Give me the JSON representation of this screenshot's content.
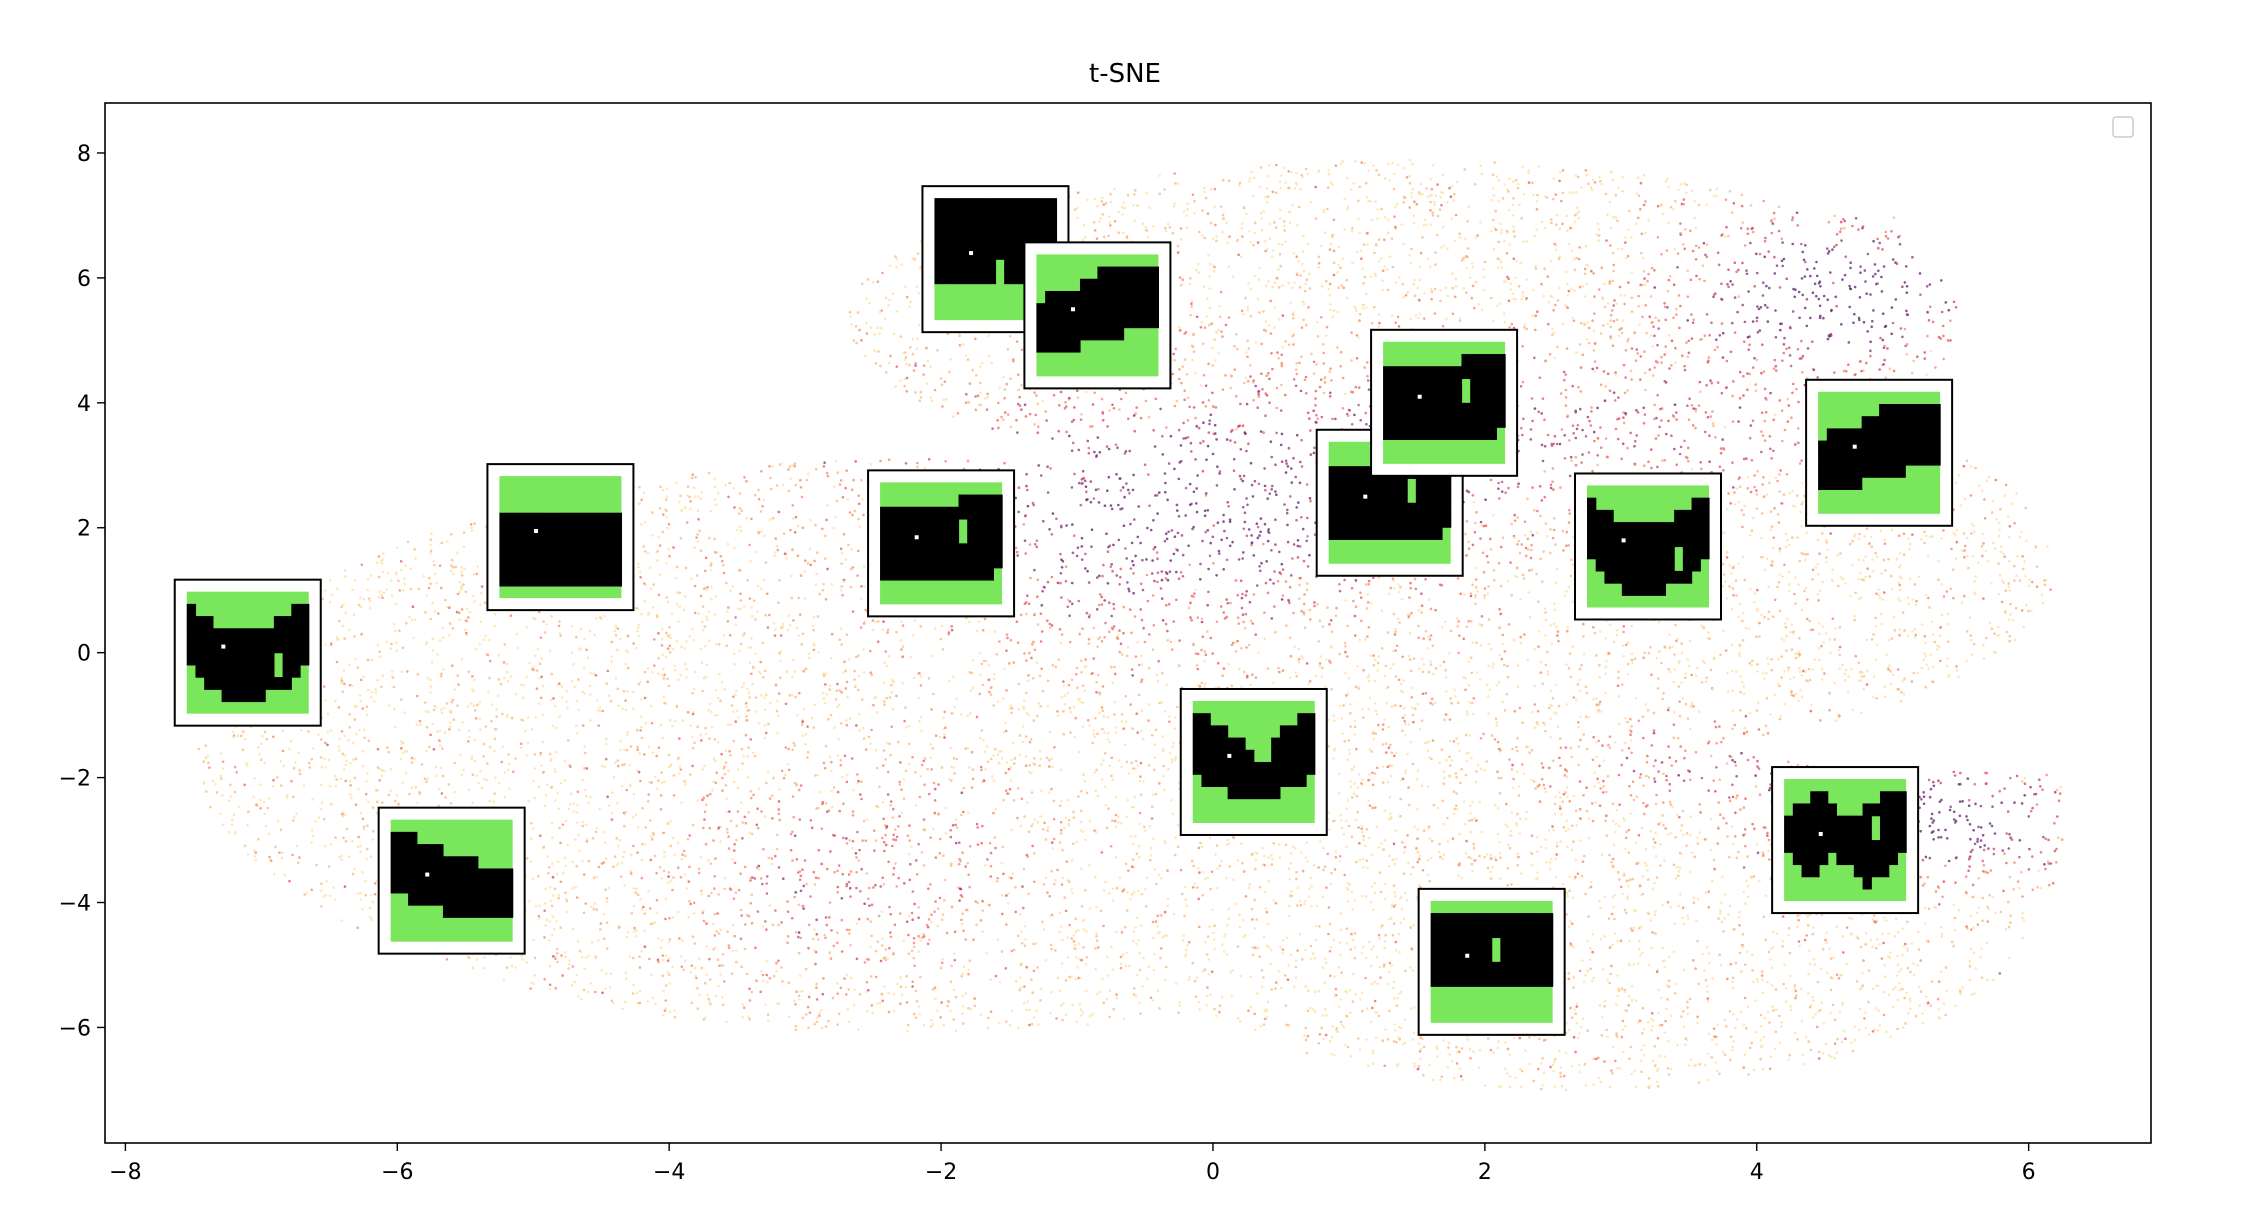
{
  "chart_data": {
    "type": "scatter",
    "title": "t-SNE",
    "xlabel": "",
    "ylabel": "",
    "xlim": [
      -8.15,
      6.9
    ],
    "ylim": [
      -7.85,
      8.8
    ],
    "xticks": [
      -8,
      -6,
      -4,
      -2,
      0,
      2,
      4,
      6
    ],
    "yticks": [
      -6,
      -4,
      -2,
      0,
      2,
      4,
      6,
      8
    ],
    "x_tick_labels": [
      "−8",
      "−6",
      "−4",
      "−2",
      "0",
      "2",
      "4",
      "6"
    ],
    "y_tick_labels": [
      "−6",
      "−4",
      "−2",
      "0",
      "2",
      "4",
      "6",
      "8"
    ],
    "grid": false,
    "legend": {
      "placement": "top-right",
      "entries": []
    },
    "colormap": [
      "#fcdfa0",
      "#fbb47a",
      "#f48662",
      "#e65a5d",
      "#c4416f",
      "#8c2c7a",
      "#5c1f6e"
    ],
    "thumbnail_colors": {
      "background": "#7ae65c",
      "mask": "#000000",
      "frame": "#000000",
      "marker": "#ffffff"
    },
    "scatter_summary": "approximately 40,000 small points forming a broad cloud spanning x ≈ -7.5…6.2 and y ≈ -7…8",
    "thumbnails": [
      {
        "x": -7.1,
        "y": 0.0,
        "shape": "curve-down"
      },
      {
        "x": -5.6,
        "y": -3.65,
        "shape": "slope-down"
      },
      {
        "x": -4.8,
        "y": 1.85,
        "shape": "band"
      },
      {
        "x": -2.0,
        "y": 1.75,
        "shape": "band-block"
      },
      {
        "x": -1.6,
        "y": 6.3,
        "shape": "band-low"
      },
      {
        "x": -0.85,
        "y": 5.4,
        "shape": "slope-up"
      },
      {
        "x": 0.3,
        "y": -1.75,
        "shape": "v-dip"
      },
      {
        "x": 1.3,
        "y": 2.4,
        "shape": "band-block"
      },
      {
        "x": 1.7,
        "y": 4.0,
        "shape": "band-block"
      },
      {
        "x": 2.05,
        "y": -4.95,
        "shape": "band-block-high"
      },
      {
        "x": 3.2,
        "y": 1.7,
        "shape": "curve-down"
      },
      {
        "x": 4.65,
        "y": -3.0,
        "shape": "zigzag"
      },
      {
        "x": 4.9,
        "y": 3.2,
        "shape": "slope-up"
      }
    ]
  }
}
